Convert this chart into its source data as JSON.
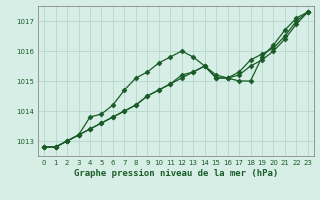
{
  "title": "Graphe pression niveau de la mer (hPa)",
  "background_color": "#d6eee6",
  "plot_bg_color": "#d6eee6",
  "grid_color": "#b0d4c8",
  "line_color": "#1a5c28",
  "x_values": [
    0,
    1,
    2,
    3,
    4,
    5,
    6,
    7,
    8,
    9,
    10,
    11,
    12,
    13,
    14,
    15,
    16,
    17,
    18,
    19,
    20,
    21,
    22,
    23
  ],
  "series1": [
    1012.8,
    1012.8,
    1013.0,
    1013.2,
    1013.8,
    1013.9,
    1014.2,
    1014.7,
    1015.1,
    1015.3,
    1015.6,
    1015.8,
    1016.0,
    1015.8,
    1015.5,
    1015.2,
    1015.1,
    1015.0,
    1015.0,
    1015.8,
    1016.2,
    1016.7,
    1017.1,
    1017.3
  ],
  "series2": [
    1012.8,
    1012.8,
    1013.0,
    1013.2,
    1013.4,
    1013.6,
    1013.8,
    1014.0,
    1014.2,
    1014.5,
    1014.7,
    1014.9,
    1015.1,
    1015.3,
    1015.5,
    1015.1,
    1015.1,
    1015.2,
    1015.5,
    1015.7,
    1016.0,
    1016.4,
    1016.9,
    1017.3
  ],
  "series3": [
    1012.8,
    1012.8,
    1013.0,
    1013.2,
    1013.4,
    1013.6,
    1013.8,
    1014.0,
    1014.2,
    1014.5,
    1014.7,
    1014.9,
    1015.2,
    1015.3,
    1015.5,
    1015.1,
    1015.1,
    1015.3,
    1015.7,
    1015.9,
    1016.1,
    1016.5,
    1017.0,
    1017.3
  ],
  "ylim": [
    1012.5,
    1017.5
  ],
  "yticks": [
    1013,
    1014,
    1015,
    1016,
    1017
  ],
  "xlim": [
    -0.5,
    23.5
  ],
  "xticks": [
    0,
    1,
    2,
    3,
    4,
    5,
    6,
    7,
    8,
    9,
    10,
    11,
    12,
    13,
    14,
    15,
    16,
    17,
    18,
    19,
    20,
    21,
    22,
    23
  ],
  "marker": "D",
  "marker_size": 2.5,
  "line_width": 0.9,
  "label_fontsize": 6.5,
  "tick_fontsize": 5.0,
  "figsize": [
    3.2,
    2.0
  ],
  "dpi": 100
}
